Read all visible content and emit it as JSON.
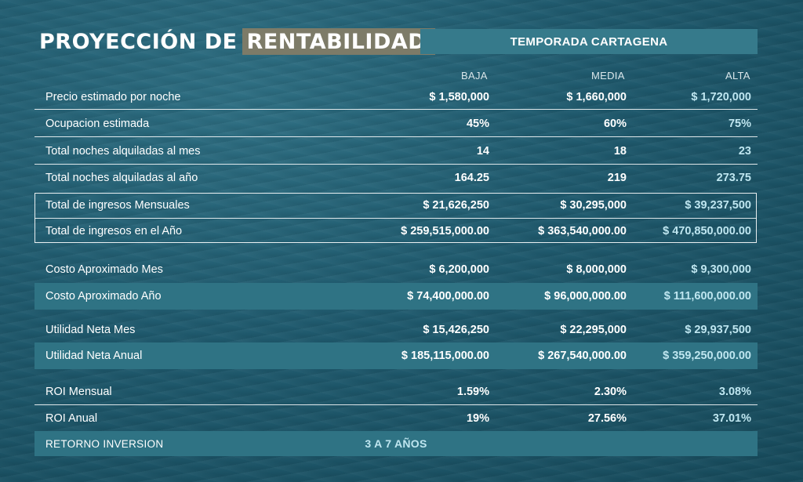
{
  "title": {
    "part1": "PROYECCIÓN DE",
    "highlight": "RENTABILIDAD"
  },
  "season_label": "TEMPORADA CARTAGENA",
  "columns": [
    "BAJA",
    "MEDIA",
    "ALTA"
  ],
  "rows": [
    {
      "label": "Precio estimado por noche",
      "values": [
        "$  1,580,000",
        "$  1,660,000",
        "$  1,720,000"
      ]
    },
    {
      "label": "Ocupacion estimada",
      "values": [
        "45%",
        "60%",
        "75%"
      ]
    },
    {
      "label": "Total noches alquiladas al mes",
      "values": [
        "14",
        "18",
        "23"
      ]
    },
    {
      "label": "Total noches alquiladas al año",
      "values": [
        "164.25",
        "219",
        "273.75"
      ]
    },
    {
      "label": "Total de ingresos Mensuales",
      "values": [
        "$  21,626,250",
        "$  30,295,000",
        "$  39,237,500"
      ]
    },
    {
      "label": "Total de ingresos en el Año",
      "values": [
        "$  259,515,000.00",
        "$  363,540,000.00",
        "$  470,850,000.00"
      ]
    },
    {
      "label": "Costo Aproximado Mes",
      "values": [
        "$  6,200,000",
        "$  8,000,000",
        "$  9,300,000"
      ]
    },
    {
      "label": "Costo Aproximado Año",
      "values": [
        "$  74,400,000.00",
        "$  96,000,000.00",
        "$  111,600,000.00"
      ]
    },
    {
      "label": "Utilidad Neta Mes",
      "values": [
        "$  15,426,250",
        "$  22,295,000",
        "$  29,937,500"
      ]
    },
    {
      "label": "Utilidad Neta Anual",
      "values": [
        "$  185,115,000.00",
        "$  267,540,000.00",
        "$  359,250,000.00"
      ]
    },
    {
      "label": "ROI Mensual",
      "values": [
        "1.59%",
        "2.30%",
        "3.08%"
      ]
    },
    {
      "label": "ROI Anual",
      "values": [
        "19%",
        "27.56%",
        "37.01%"
      ]
    }
  ],
  "retorno": {
    "label": "RETORNO INVERSION",
    "value": "3 A 7 AÑOS"
  }
}
